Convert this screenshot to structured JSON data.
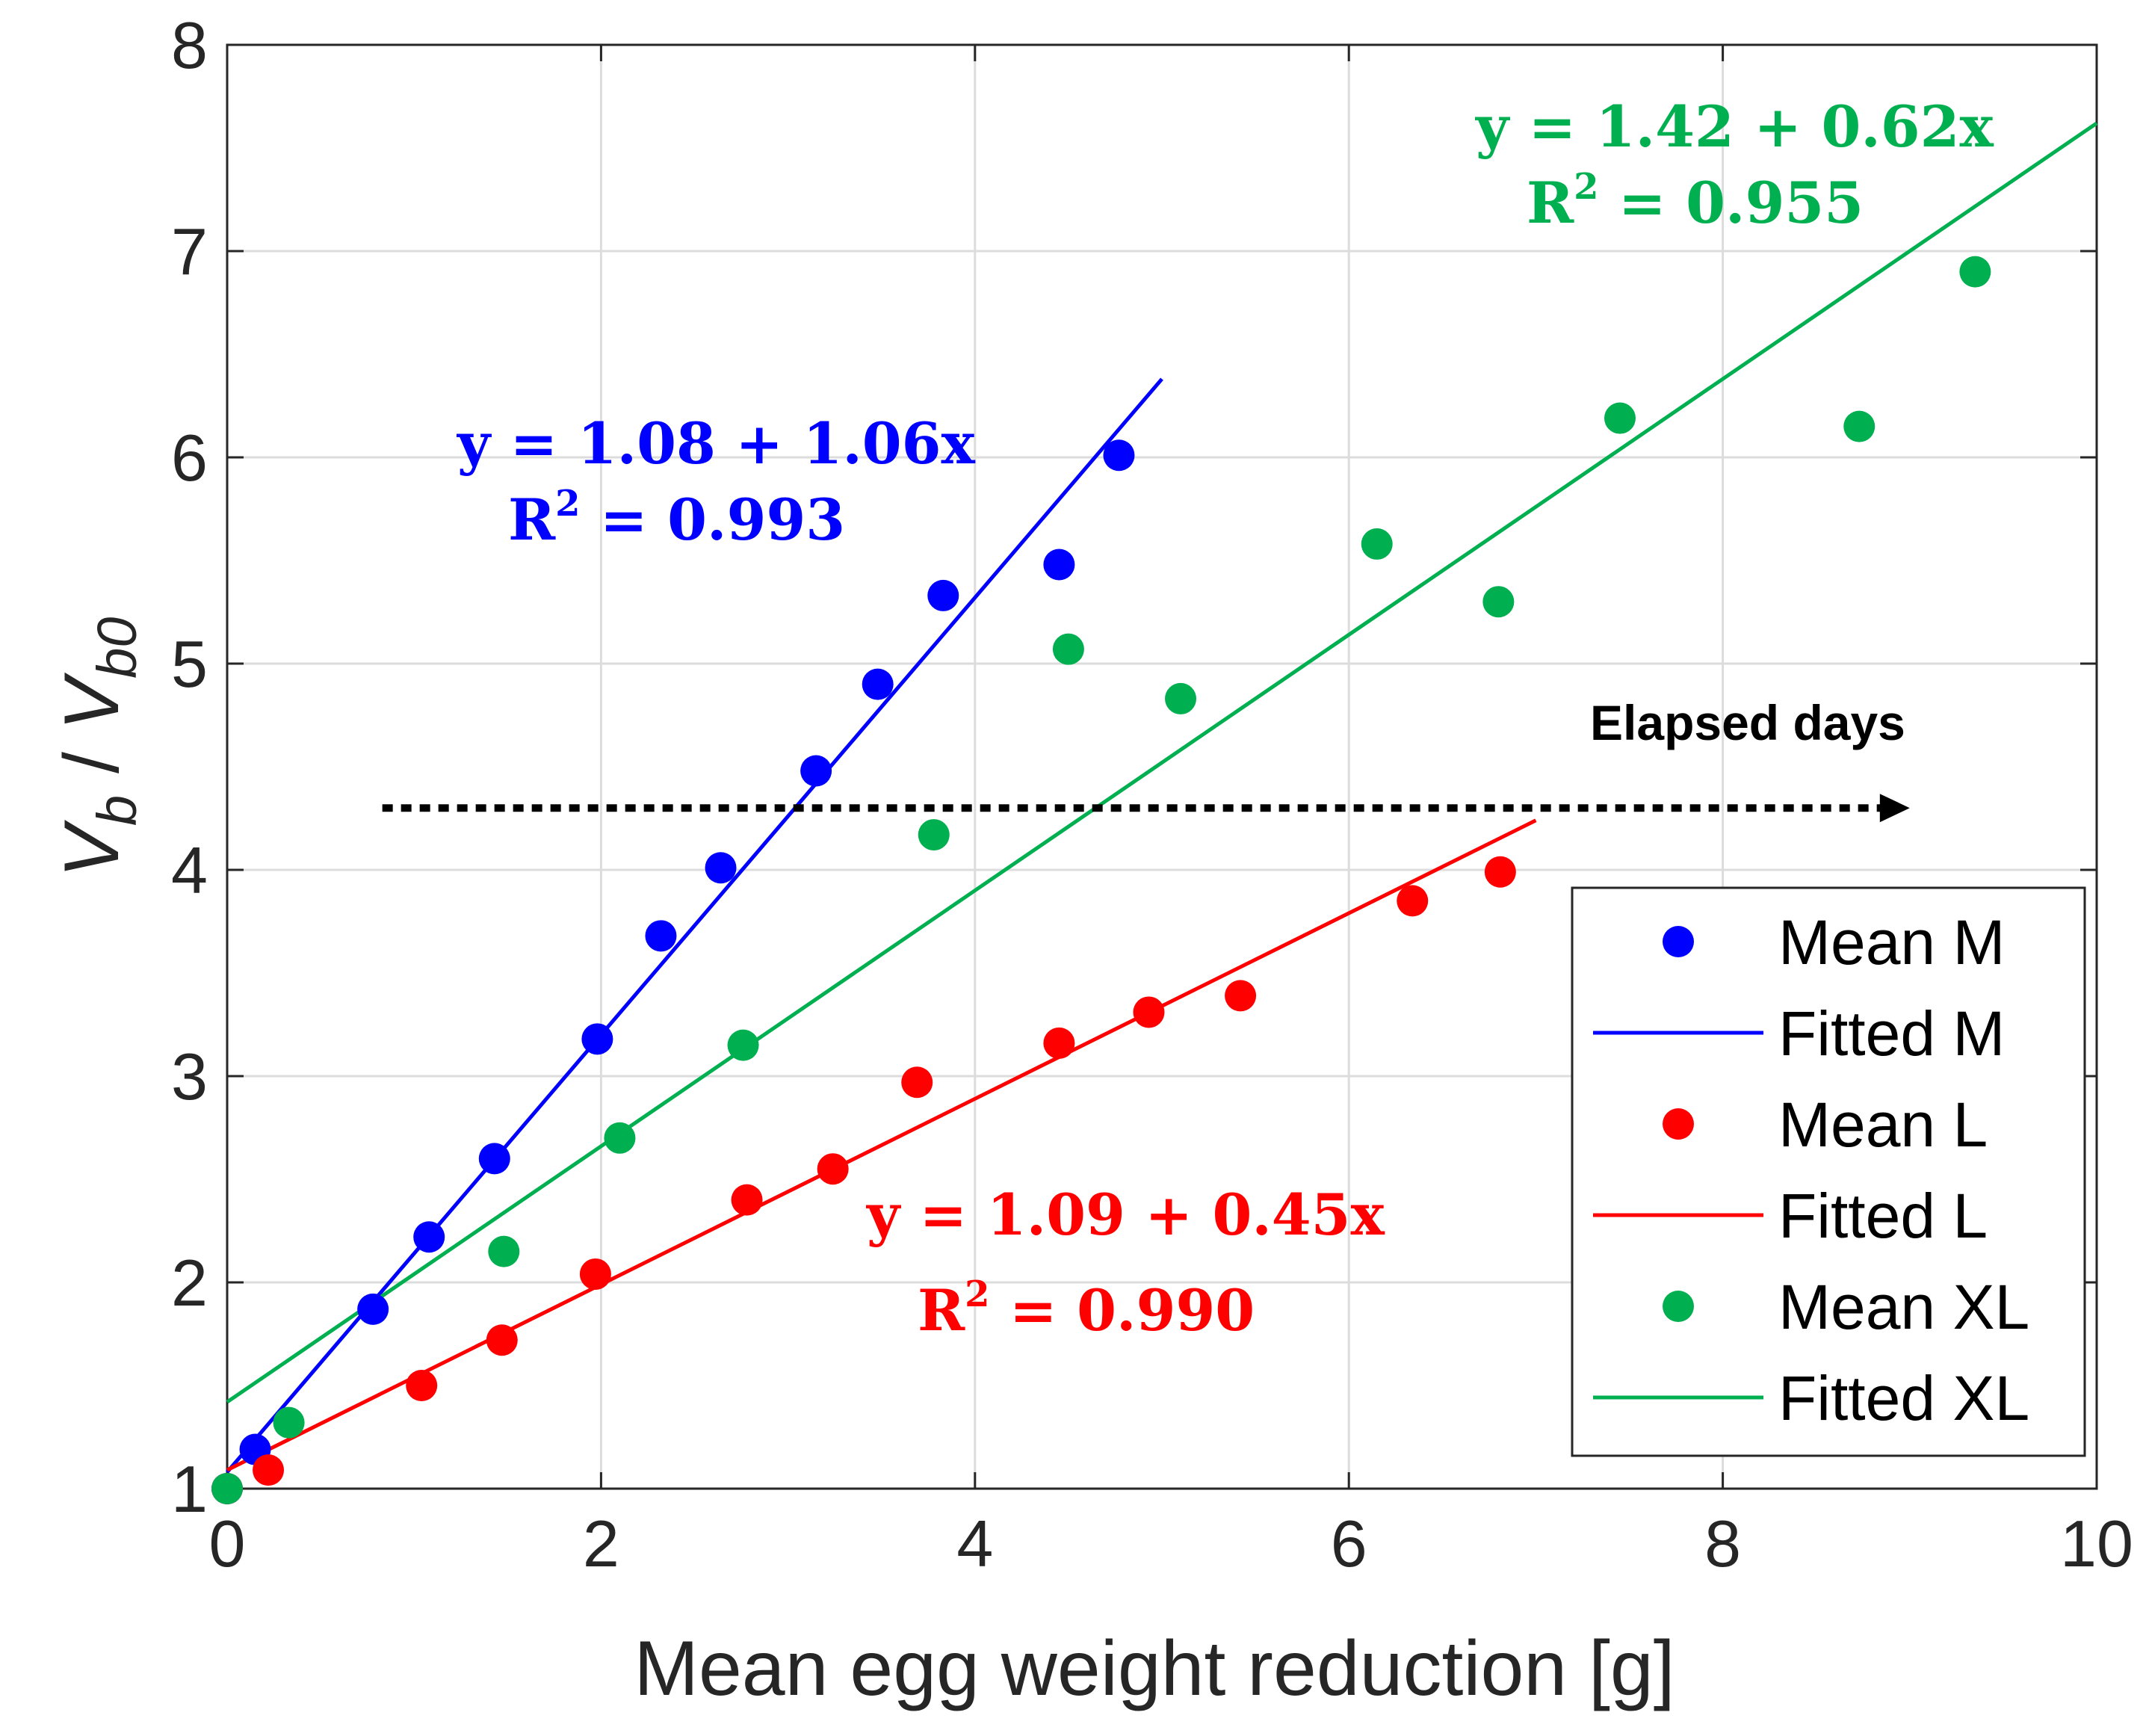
{
  "chart_data": {
    "type": "scatter",
    "xlabel": "Mean egg weight reduction [g]",
    "ylabel": {
      "base_v": "V",
      "sub_b": "b",
      "slash": " / ",
      "base_v2": "V",
      "sub_b0": "b0"
    },
    "xlim": [
      0,
      10
    ],
    "ylim": [
      1,
      8
    ],
    "xticks": [
      "0",
      "2",
      "4",
      "6",
      "8",
      "10"
    ],
    "yticks": [
      "1",
      "2",
      "3",
      "4",
      "5",
      "6",
      "7",
      "8"
    ],
    "grid": true,
    "legend_position": "bottom-right",
    "series": [
      {
        "name": "Mean M",
        "kind": "scatter",
        "color": "#0000ff",
        "x": [
          0.0,
          0.15,
          0.78,
          1.08,
          1.43,
          1.98,
          2.32,
          2.64,
          3.15,
          3.48,
          3.83,
          4.45,
          4.77
        ],
        "y": [
          1.0,
          1.19,
          1.87,
          2.22,
          2.6,
          3.18,
          3.68,
          4.01,
          4.48,
          4.9,
          5.33,
          5.48,
          6.01
        ]
      },
      {
        "name": "Fitted M",
        "kind": "line",
        "color": "#0000ff",
        "intercept": 1.08,
        "slope": 1.06,
        "x_range": [
          0,
          5.0
        ]
      },
      {
        "name": "Mean L",
        "kind": "scatter",
        "color": "#ff0000",
        "x": [
          0.0,
          0.22,
          1.04,
          1.47,
          1.97,
          2.78,
          3.24,
          3.69,
          4.45,
          4.93,
          5.42,
          6.34,
          6.81
        ],
        "y": [
          1.0,
          1.09,
          1.5,
          1.72,
          2.04,
          2.4,
          2.55,
          2.97,
          3.16,
          3.31,
          3.39,
          3.85,
          3.99
        ]
      },
      {
        "name": "Fitted L",
        "kind": "line",
        "color": "#ff0000",
        "intercept": 1.09,
        "slope": 0.45,
        "x_range": [
          0,
          7.0
        ]
      },
      {
        "name": "Mean XL",
        "kind": "scatter",
        "color": "#00b050",
        "x": [
          0.0,
          0.33,
          1.48,
          2.1,
          2.76,
          3.78,
          4.5,
          5.1,
          6.15,
          6.8,
          7.45,
          8.73,
          9.35
        ],
        "y": [
          1.0,
          1.32,
          2.15,
          2.7,
          3.15,
          4.17,
          5.07,
          4.83,
          5.58,
          5.3,
          6.19,
          6.15,
          6.9
        ]
      },
      {
        "name": "Fitted XL",
        "kind": "line",
        "color": "#00b050",
        "intercept": 1.42,
        "slope": 0.62,
        "x_range": [
          0,
          10
        ]
      }
    ],
    "annotations": [
      {
        "color": "#0000ff",
        "equation": "y = 1.08 + 1.06x",
        "r2_label": "R",
        "r2_sup": "2",
        "r2_value": " = 0.993"
      },
      {
        "color": "#00b050",
        "equation": "y = 1.42 + 0.62x",
        "r2_label": "R",
        "r2_sup": "2",
        "r2_value": " = 0.955"
      },
      {
        "color": "#ff0000",
        "equation": "y = 1.09 + 0.45x",
        "r2_label": "R",
        "r2_sup": "2",
        "r2_value": " = 0.990"
      }
    ],
    "arrow_label": "Elapsed days",
    "arrow_x_range": [
      0.83,
      9.0
    ],
    "arrow_y": 4.3
  }
}
